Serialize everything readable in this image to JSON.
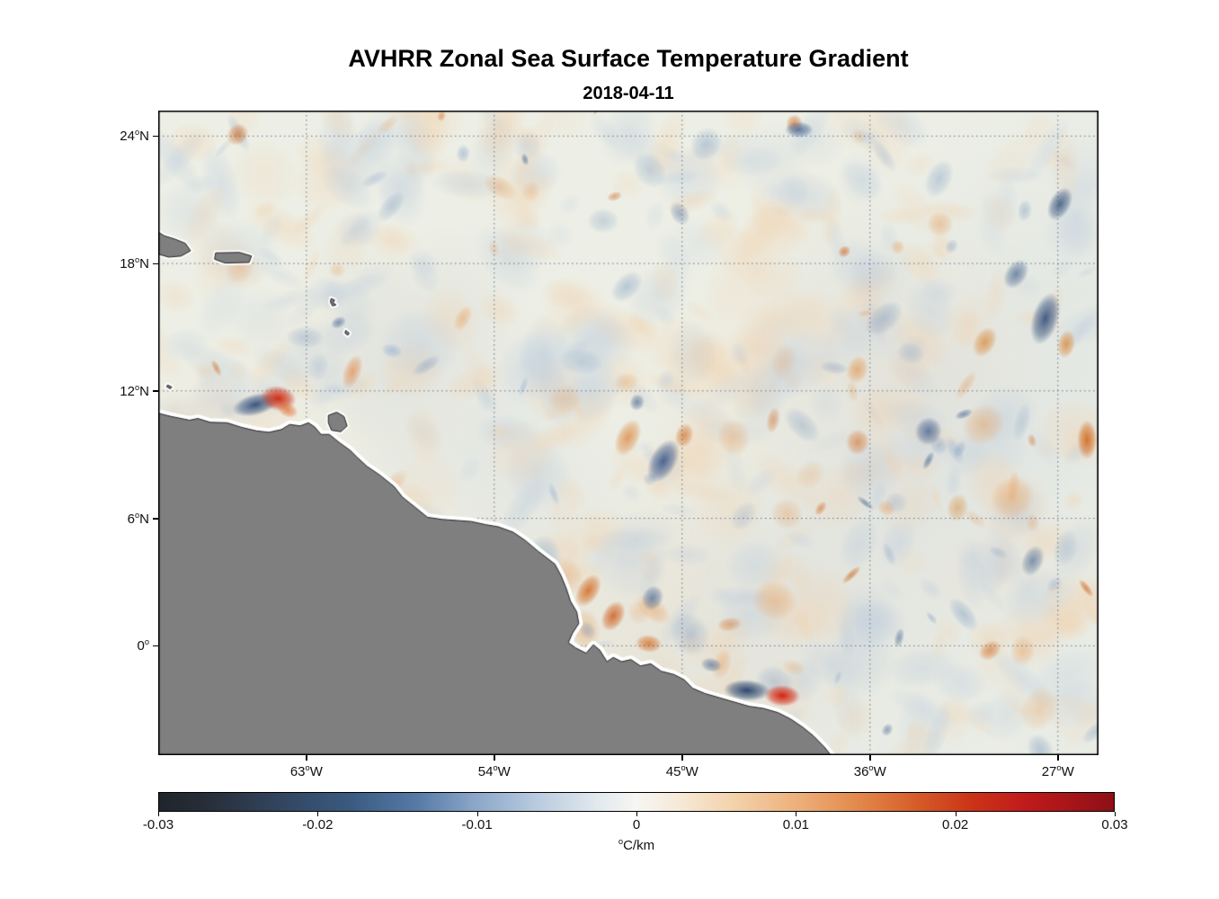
{
  "chart_data": {
    "type": "heatmap",
    "title": "AVHRR Zonal Sea Surface Temperature Gradient",
    "subtitle": "2018-04-11",
    "x_axis": {
      "range": [
        -70.1,
        -25.05
      ],
      "ticks": [
        {
          "value": -63,
          "num": "63",
          "hemi": "W"
        },
        {
          "value": -54,
          "num": "54",
          "hemi": "W"
        },
        {
          "value": -45,
          "num": "45",
          "hemi": "W"
        },
        {
          "value": -36,
          "num": "36",
          "hemi": "W"
        },
        {
          "value": -27,
          "num": "27",
          "hemi": "W"
        }
      ]
    },
    "y_axis": {
      "range": [
        -5.15,
        25.2
      ],
      "ticks": [
        {
          "value": 24,
          "num": "24",
          "hemi": "N"
        },
        {
          "value": 18,
          "num": "18",
          "hemi": "N"
        },
        {
          "value": 12,
          "num": "12",
          "hemi": "N"
        },
        {
          "value": 6,
          "num": "6",
          "hemi": "N"
        },
        {
          "value": 0,
          "num": "0",
          "hemi": ""
        }
      ]
    },
    "colorbar": {
      "min": -0.03,
      "max": 0.03,
      "units": {
        "sup": "o",
        "text": "C/km"
      },
      "ticks": [
        {
          "value": -0.03,
          "label": "-0.03"
        },
        {
          "value": -0.02,
          "label": "-0.02"
        },
        {
          "value": -0.01,
          "label": "-0.01"
        },
        {
          "value": 0,
          "label": "0"
        },
        {
          "value": 0.01,
          "label": "0.01"
        },
        {
          "value": 0.02,
          "label": "0.02"
        },
        {
          "value": 0.03,
          "label": "0.03"
        }
      ],
      "gradient": [
        {
          "pos": 0.0,
          "color": "#20252c"
        },
        {
          "pos": 0.05,
          "color": "#272e38"
        },
        {
          "pos": 0.12,
          "color": "#31435c"
        },
        {
          "pos": 0.2,
          "color": "#3a5a80"
        },
        {
          "pos": 0.27,
          "color": "#567aa6"
        },
        {
          "pos": 0.33,
          "color": "#8aa6c8"
        },
        {
          "pos": 0.4,
          "color": "#bccde0"
        },
        {
          "pos": 0.46,
          "color": "#e2e9ee"
        },
        {
          "pos": 0.5,
          "color": "#f7f6f3"
        },
        {
          "pos": 0.545,
          "color": "#f6e9d8"
        },
        {
          "pos": 0.6,
          "color": "#f3d3ac"
        },
        {
          "pos": 0.667,
          "color": "#edb17c"
        },
        {
          "pos": 0.73,
          "color": "#e38a4d"
        },
        {
          "pos": 0.79,
          "color": "#d65f2a"
        },
        {
          "pos": 0.85,
          "color": "#cb3417"
        },
        {
          "pos": 0.91,
          "color": "#c01a1b"
        },
        {
          "pos": 1.0,
          "color": "#8c1016"
        }
      ]
    },
    "map": {
      "ocean_base": "#edefe6",
      "land_color": "#7f7f7f",
      "grid_color": "#55657d",
      "coast": [
        [
          -70.3,
          11.0
        ],
        [
          -69.5,
          10.8
        ],
        [
          -68.6,
          10.62
        ],
        [
          -68.2,
          10.7
        ],
        [
          -67.6,
          10.52
        ],
        [
          -66.8,
          10.5
        ],
        [
          -66.1,
          10.28
        ],
        [
          -65.4,
          10.12
        ],
        [
          -64.8,
          10.05
        ],
        [
          -64.2,
          10.18
        ],
        [
          -63.8,
          10.42
        ],
        [
          -63.3,
          10.35
        ],
        [
          -62.9,
          10.5
        ],
        [
          -62.6,
          10.3
        ],
        [
          -62.3,
          9.95
        ],
        [
          -61.9,
          9.95
        ],
        [
          -61.4,
          9.55
        ],
        [
          -60.9,
          9.2
        ],
        [
          -60.6,
          8.9
        ],
        [
          -60.1,
          8.45
        ],
        [
          -59.5,
          8.05
        ],
        [
          -58.8,
          7.5
        ],
        [
          -58.4,
          7.0
        ],
        [
          -57.7,
          6.45
        ],
        [
          -57.2,
          6.05
        ],
        [
          -56.5,
          5.95
        ],
        [
          -55.8,
          5.9
        ],
        [
          -55.1,
          5.85
        ],
        [
          -54.4,
          5.7
        ],
        [
          -53.8,
          5.6
        ],
        [
          -53.1,
          5.35
        ],
        [
          -52.5,
          4.95
        ],
        [
          -51.9,
          4.45
        ],
        [
          -51.5,
          4.15
        ],
        [
          -51.1,
          3.85
        ],
        [
          -50.8,
          3.3
        ],
        [
          -50.55,
          2.7
        ],
        [
          -50.35,
          2.1
        ],
        [
          -50.05,
          1.6
        ],
        [
          -49.95,
          1.05
        ],
        [
          -50.25,
          0.6
        ],
        [
          -50.45,
          0.15
        ],
        [
          -50.1,
          -0.1
        ],
        [
          -49.6,
          -0.35
        ],
        [
          -49.25,
          0.05
        ],
        [
          -48.95,
          -0.2
        ],
        [
          -48.6,
          -0.75
        ],
        [
          -48.3,
          -0.55
        ],
        [
          -47.9,
          -0.75
        ],
        [
          -47.45,
          -0.65
        ],
        [
          -47.0,
          -0.95
        ],
        [
          -46.5,
          -0.85
        ],
        [
          -46.0,
          -1.2
        ],
        [
          -45.4,
          -1.35
        ],
        [
          -44.9,
          -1.6
        ],
        [
          -44.5,
          -2.0
        ],
        [
          -43.9,
          -2.25
        ],
        [
          -43.2,
          -2.45
        ],
        [
          -42.5,
          -2.65
        ],
        [
          -41.8,
          -2.85
        ],
        [
          -41.1,
          -2.95
        ],
        [
          -40.4,
          -3.15
        ],
        [
          -39.8,
          -3.45
        ],
        [
          -39.2,
          -3.85
        ],
        [
          -38.7,
          -4.25
        ],
        [
          -38.2,
          -4.75
        ],
        [
          -37.75,
          -5.3
        ],
        [
          -70.3,
          -5.3
        ]
      ],
      "islands": [
        [
          [
            -61.95,
            10.85
          ],
          [
            -61.55,
            11.0
          ],
          [
            -61.2,
            10.8
          ],
          [
            -61.05,
            10.35
          ],
          [
            -61.35,
            10.08
          ],
          [
            -61.8,
            10.15
          ],
          [
            -61.95,
            10.5
          ]
        ],
        [
          [
            -70.3,
            19.6
          ],
          [
            -69.8,
            19.3
          ],
          [
            -69.3,
            19.15
          ],
          [
            -68.8,
            18.95
          ],
          [
            -68.55,
            18.6
          ],
          [
            -69.0,
            18.35
          ],
          [
            -69.6,
            18.3
          ],
          [
            -70.3,
            18.5
          ]
        ],
        [
          [
            -67.35,
            18.5
          ],
          [
            -66.2,
            18.52
          ],
          [
            -65.63,
            18.35
          ],
          [
            -65.75,
            18.05
          ],
          [
            -66.9,
            18.02
          ],
          [
            -67.4,
            18.2
          ]
        ],
        [
          [
            -61.82,
            16.35
          ],
          [
            -61.65,
            16.28
          ],
          [
            -61.72,
            16.15
          ],
          [
            -61.58,
            16.05
          ],
          [
            -61.75,
            16.0
          ],
          [
            -61.85,
            16.18
          ]
        ],
        [
          [
            -61.12,
            14.85
          ],
          [
            -60.95,
            14.72
          ],
          [
            -61.02,
            14.62
          ],
          [
            -61.15,
            14.72
          ]
        ],
        [
          [
            -69.65,
            12.28
          ],
          [
            -69.45,
            12.18
          ],
          [
            -69.52,
            12.1
          ],
          [
            -69.7,
            12.2
          ]
        ]
      ],
      "noise": {
        "seed": 424211,
        "passes": [
          {
            "count": 24,
            "alpha": [
              0.06,
              0.14
            ],
            "r": [
              120,
              300
            ],
            "colors": [
              "#b9c9db",
              "#f2cfa8"
            ]
          },
          {
            "count": 520,
            "alpha": [
              0.16,
              0.38
            ],
            "r": [
              12,
              48
            ],
            "colors": [
              "#b9c9db",
              "#f2cfa8"
            ]
          },
          {
            "count": 95,
            "alpha": [
              0.28,
              0.52
            ],
            "r": [
              8,
              26
            ],
            "colors": [
              "#85a1c4",
              "#e6a262"
            ]
          },
          {
            "count": 30,
            "alpha": [
              0.42,
              0.7
            ],
            "r": [
              5,
              15
            ],
            "colors": [
              "#41608f",
              "#cf6a23"
            ]
          }
        ]
      },
      "features": [
        [
          -65.45,
          11.35,
          26,
          12,
          -0.25,
          "#2a4878",
          0.9
        ],
        [
          -64.35,
          11.65,
          20,
          14,
          0.15,
          "#cf2408",
          0.95
        ],
        [
          -63.9,
          11.1,
          12,
          8,
          0.4,
          "#e06a28",
          0.7
        ],
        [
          -60.8,
          12.9,
          10,
          20,
          0.35,
          "#e08a4c",
          0.7
        ],
        [
          -58.9,
          13.9,
          12,
          8,
          0.2,
          "#9fb6d2",
          0.7
        ],
        [
          -47.6,
          9.8,
          13,
          22,
          0.45,
          "#dd8a44",
          0.8
        ],
        [
          -45.9,
          8.7,
          15,
          26,
          0.5,
          "#3a588c",
          0.9
        ],
        [
          -44.9,
          9.9,
          10,
          14,
          0.3,
          "#d0742e",
          0.7
        ],
        [
          -49.5,
          2.6,
          12,
          20,
          0.55,
          "#d2691e",
          0.85
        ],
        [
          -48.3,
          1.4,
          12,
          18,
          0.5,
          "#cf5f1d",
          0.85
        ],
        [
          -46.6,
          0.1,
          15,
          10,
          0.1,
          "#d4702a",
          0.8
        ],
        [
          -41.9,
          -2.1,
          26,
          12,
          0.05,
          "#1e3a66",
          0.92
        ],
        [
          -40.2,
          -2.35,
          20,
          12,
          0.05,
          "#d21b06",
          0.95
        ],
        [
          -43.6,
          -0.9,
          12,
          8,
          0.2,
          "#3f5e8e",
          0.6
        ],
        [
          -27.6,
          15.4,
          15,
          30,
          0.3,
          "#33517f",
          0.9
        ],
        [
          -26.6,
          14.2,
          10,
          16,
          0.2,
          "#d98a3c",
          0.8
        ],
        [
          -25.6,
          9.7,
          11,
          22,
          0.0,
          "#d06a1e",
          0.9
        ],
        [
          -26.9,
          20.8,
          12,
          20,
          0.5,
          "#3a577f",
          0.85
        ],
        [
          -39.4,
          24.3,
          16,
          9,
          0.0,
          "#4a6a96",
          0.85
        ],
        [
          -33.2,
          10.1,
          15,
          16,
          0.4,
          "#3e5c8c",
          0.75
        ],
        [
          -30.5,
          14.3,
          12,
          18,
          0.5,
          "#d98a3c",
          0.75
        ],
        [
          -36.6,
          13.0,
          12,
          16,
          0.3,
          "#e09a58",
          0.7
        ],
        [
          -29.0,
          17.5,
          12,
          18,
          0.6,
          "#44628f",
          0.7
        ],
        [
          -31.8,
          6.5,
          12,
          16,
          0.2,
          "#d89a50",
          0.6
        ],
        [
          -28.2,
          4.0,
          12,
          18,
          0.4,
          "#486690",
          0.65
        ]
      ]
    }
  }
}
